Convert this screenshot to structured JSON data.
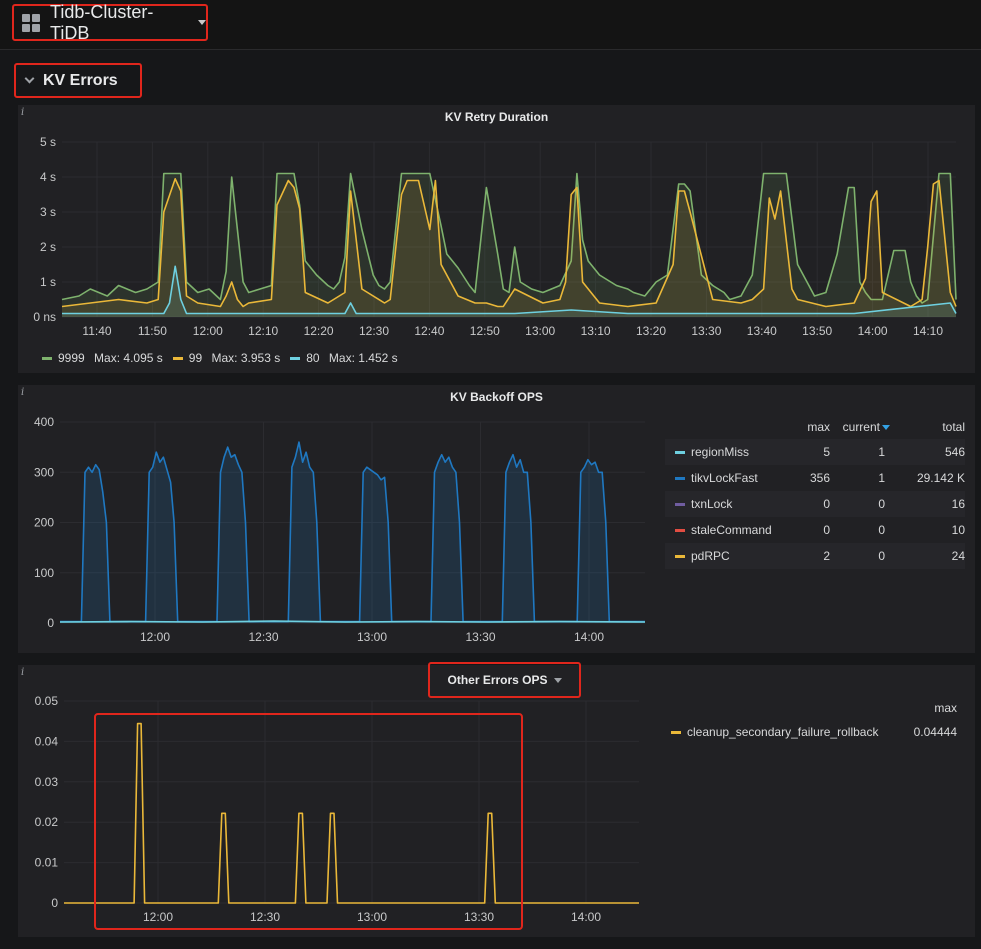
{
  "header": {
    "dashboard_title": "Tidb-Cluster-TiDB"
  },
  "row": {
    "title": "KV Errors"
  },
  "colors": {
    "green": "#7eb26d",
    "yellow": "#eab839",
    "cyan": "#6ed0e0",
    "blue": "#1f78c1",
    "purple": "#705da0",
    "red": "#e24d42",
    "highlight": "#e0261c",
    "legend_header": "#33a2e5"
  },
  "panels": {
    "kv_retry": {
      "title": "KV Retry Duration",
      "legend": [
        {
          "name": "9999",
          "max_label": "Max:",
          "max": "4.095 s",
          "color": "#7eb26d"
        },
        {
          "name": "99",
          "max_label": "Max:",
          "max": "3.953 s",
          "color": "#eab839"
        },
        {
          "name": "80",
          "max_label": "Max:",
          "max": "1.452 s",
          "color": "#6ed0e0"
        }
      ]
    },
    "kv_backoff": {
      "title": "KV Backoff OPS",
      "legend_headers": {
        "max": "max",
        "current": "current",
        "total": "total"
      },
      "legend": [
        {
          "name": "regionMiss",
          "max": "5",
          "current": "1",
          "total": "546",
          "color": "#6ed0e0"
        },
        {
          "name": "tikvLockFast",
          "max": "356",
          "current": "1",
          "total": "29.142 K",
          "color": "#1f78c1"
        },
        {
          "name": "txnLock",
          "max": "0",
          "current": "0",
          "total": "16",
          "color": "#705da0"
        },
        {
          "name": "staleCommand",
          "max": "0",
          "current": "0",
          "total": "10",
          "color": "#e24d42"
        },
        {
          "name": "pdRPC",
          "max": "2",
          "current": "0",
          "total": "24",
          "color": "#eab839"
        }
      ]
    },
    "other_errors": {
      "title": "Other Errors OPS",
      "legend_headers": {
        "max": "max"
      },
      "legend": [
        {
          "name": "cleanup_secondary_failure_rollback",
          "max": "0.04444",
          "color": "#eab839"
        }
      ]
    }
  },
  "chart_data": [
    {
      "type": "line",
      "title": "KV Retry Duration",
      "x_ticks": [
        "11:40",
        "11:50",
        "12:00",
        "12:10",
        "12:20",
        "12:30",
        "12:40",
        "12:50",
        "13:00",
        "13:10",
        "13:20",
        "13:30",
        "13:40",
        "13:50",
        "14:00",
        "14:10"
      ],
      "y_ticks": [
        "0 ns",
        "1 s",
        "2 s",
        "3 s",
        "4 s",
        "5 s"
      ],
      "ylim": [
        0,
        5
      ],
      "grid": true,
      "legend_position": "bottom",
      "series": [
        {
          "name": "9999",
          "max": 4.095,
          "color": "#7eb26d",
          "x": [
            0,
            3,
            5,
            8,
            10,
            13,
            15,
            17,
            18,
            20,
            21,
            22,
            24,
            26,
            28,
            29,
            30,
            31,
            32,
            33,
            35,
            37,
            38,
            40,
            41,
            42,
            43,
            45,
            47,
            48,
            49,
            50,
            51,
            53,
            55,
            56,
            57,
            58,
            60,
            61,
            63,
            65,
            67,
            68,
            70,
            72,
            73,
            75,
            77,
            78,
            79,
            80,
            81,
            83,
            85,
            88,
            90,
            91,
            92,
            93,
            95,
            97,
            98,
            100,
            101,
            103,
            105,
            107,
            109,
            110,
            111,
            113,
            115,
            117,
            118,
            120,
            121,
            122,
            124,
            126,
            127,
            128,
            130,
            132,
            133,
            135,
            137,
            139,
            140,
            141,
            142,
            143,
            145,
            147,
            149,
            150,
            151,
            152,
            153,
            155,
            157,
            158
          ],
          "y": [
            0.5,
            0.6,
            0.8,
            0.6,
            0.9,
            0.7,
            0.8,
            1.0,
            4.1,
            4.1,
            4.1,
            1.0,
            0.7,
            0.8,
            0.5,
            1.3,
            4.0,
            2.5,
            1.0,
            0.7,
            0.8,
            0.9,
            4.1,
            4.1,
            4.1,
            3.2,
            1.6,
            1.2,
            0.9,
            0.8,
            1.0,
            1.7,
            4.1,
            2.5,
            1.2,
            0.9,
            0.8,
            1.0,
            4.1,
            4.1,
            4.1,
            4.1,
            2.6,
            1.8,
            1.4,
            0.9,
            0.7,
            3.7,
            1.8,
            0.8,
            0.7,
            2.0,
            1.0,
            0.8,
            0.7,
            0.9,
            1.6,
            4.1,
            2.2,
            1.6,
            1.2,
            1.0,
            0.9,
            0.8,
            0.7,
            0.6,
            1.0,
            1.2,
            3.8,
            3.8,
            3.6,
            1.2,
            0.9,
            0.7,
            0.5,
            0.6,
            0.9,
            1.2,
            4.1,
            4.1,
            4.1,
            4.1,
            1.5,
            0.9,
            0.6,
            0.7,
            1.8,
            3.7,
            3.7,
            1.0,
            0.7,
            0.5,
            0.5,
            1.9,
            1.9,
            1.0,
            0.6,
            0.4,
            0.5,
            4.1,
            4.1,
            0.5
          ]
        },
        {
          "name": "99",
          "max": 3.953,
          "color": "#eab839",
          "x": [
            0,
            5,
            10,
            15,
            17,
            18,
            20,
            21,
            22,
            24,
            28,
            29,
            30,
            31,
            32,
            33,
            37,
            38,
            40,
            41,
            42,
            43,
            47,
            48,
            50,
            51,
            53,
            57,
            58,
            60,
            61,
            63,
            65,
            66,
            67,
            70,
            73,
            75,
            77,
            78,
            80,
            85,
            88,
            89,
            90,
            91,
            92,
            95,
            100,
            105,
            108,
            109,
            110,
            111,
            115,
            120,
            122,
            124,
            125,
            126,
            127,
            129,
            130,
            135,
            140,
            142,
            143,
            144,
            145,
            150,
            152,
            153,
            154,
            155,
            157,
            158
          ],
          "y": [
            0.3,
            0.4,
            0.5,
            0.4,
            0.5,
            3.0,
            3.95,
            3.6,
            0.6,
            0.4,
            0.3,
            0.6,
            1.0,
            0.5,
            0.3,
            0.4,
            0.5,
            3.2,
            3.9,
            3.7,
            3.1,
            0.7,
            0.4,
            0.5,
            0.7,
            3.6,
            0.8,
            0.4,
            0.5,
            3.5,
            3.9,
            3.9,
            2.5,
            3.9,
            1.5,
            0.6,
            0.4,
            0.4,
            0.3,
            0.3,
            0.8,
            0.4,
            0.5,
            1.0,
            3.5,
            3.7,
            1.0,
            0.4,
            0.3,
            0.4,
            1.5,
            3.6,
            3.6,
            3.0,
            0.5,
            0.4,
            0.5,
            0.8,
            3.4,
            2.8,
            3.6,
            0.8,
            0.5,
            0.3,
            0.4,
            1.1,
            3.3,
            3.6,
            0.7,
            0.3,
            0.5,
            2.0,
            3.8,
            3.9,
            0.7,
            0.3
          ]
        },
        {
          "name": "80",
          "max": 1.452,
          "color": "#6ed0e0",
          "x": [
            0,
            10,
            18,
            19,
            20,
            21,
            22,
            30,
            40,
            45,
            50,
            51,
            52,
            60,
            80,
            90,
            100,
            110,
            120,
            130,
            140,
            157,
            158
          ],
          "y": [
            0.1,
            0.1,
            0.1,
            0.4,
            1.45,
            0.5,
            0.1,
            0.1,
            0.1,
            0.1,
            0.1,
            0.4,
            0.1,
            0.1,
            0.1,
            0.2,
            0.1,
            0.1,
            0.1,
            0.1,
            0.1,
            0.4,
            0.1
          ]
        }
      ]
    },
    {
      "type": "area",
      "title": "KV Backoff OPS",
      "x_ticks": [
        "12:00",
        "12:30",
        "13:00",
        "13:30",
        "14:00"
      ],
      "y_ticks": [
        "0",
        "100",
        "200",
        "300",
        "400"
      ],
      "ylim": [
        0,
        400
      ],
      "grid": true,
      "legend_position": "right",
      "series": [
        {
          "name": "tikvLockFast",
          "color": "#1f78c1",
          "x": [
            0,
            6,
            7,
            8,
            9,
            10,
            11,
            12,
            13,
            14,
            24,
            25,
            26,
            27,
            28,
            29,
            30,
            31,
            32,
            33,
            44,
            45,
            46,
            47,
            48,
            49,
            50,
            51,
            52,
            53,
            64,
            65,
            66,
            67,
            68,
            69,
            70,
            71,
            72,
            73,
            84,
            85,
            86,
            87,
            88,
            89,
            90,
            91,
            92,
            93,
            104,
            105,
            106,
            107,
            108,
            109,
            110,
            111,
            112,
            113,
            124,
            125,
            126,
            127,
            128,
            129,
            130,
            131,
            132,
            133,
            145,
            146,
            147,
            148,
            149,
            150,
            151,
            152,
            153,
            154,
            164
          ],
          "y": [
            3,
            3,
            300,
            310,
            300,
            315,
            305,
            260,
            200,
            3,
            3,
            300,
            310,
            340,
            320,
            330,
            305,
            280,
            200,
            3,
            3,
            300,
            330,
            350,
            330,
            335,
            315,
            300,
            200,
            3,
            3,
            310,
            330,
            360,
            320,
            340,
            310,
            300,
            200,
            3,
            3,
            300,
            310,
            305,
            300,
            295,
            285,
            290,
            200,
            3,
            3,
            300,
            320,
            335,
            320,
            330,
            310,
            300,
            200,
            3,
            3,
            300,
            320,
            335,
            310,
            325,
            300,
            300,
            200,
            3,
            3,
            300,
            310,
            325,
            315,
            320,
            300,
            300,
            200,
            3,
            3
          ]
        },
        {
          "name": "regionMiss",
          "color": "#6ed0e0",
          "x": [
            0,
            20,
            40,
            60,
            80,
            100,
            120,
            140,
            164
          ],
          "y": [
            2,
            3,
            2,
            4,
            2,
            3,
            2,
            3,
            2
          ]
        }
      ]
    },
    {
      "type": "line",
      "title": "Other Errors OPS",
      "x_ticks": [
        "12:00",
        "12:30",
        "13:00",
        "13:30",
        "14:00"
      ],
      "y_ticks": [
        "0",
        "0.01",
        "0.02",
        "0.03",
        "0.04",
        "0.05"
      ],
      "ylim": [
        0,
        0.05
      ],
      "grid": true,
      "legend_position": "right",
      "series": [
        {
          "name": "cleanup_secondary_failure_rollback",
          "max": 0.04444,
          "color": "#eab839",
          "x": [
            0,
            20,
            21,
            22,
            23,
            24,
            44,
            45,
            46,
            47,
            66,
            67,
            68,
            69,
            75,
            76,
            77,
            78,
            120,
            121,
            122,
            123,
            164
          ],
          "y": [
            0,
            0,
            0.0444,
            0.0444,
            0,
            0,
            0,
            0.0222,
            0.0222,
            0,
            0,
            0.0222,
            0.0222,
            0,
            0,
            0.0222,
            0.0222,
            0,
            0,
            0.0222,
            0.0222,
            0,
            0
          ]
        }
      ]
    }
  ]
}
